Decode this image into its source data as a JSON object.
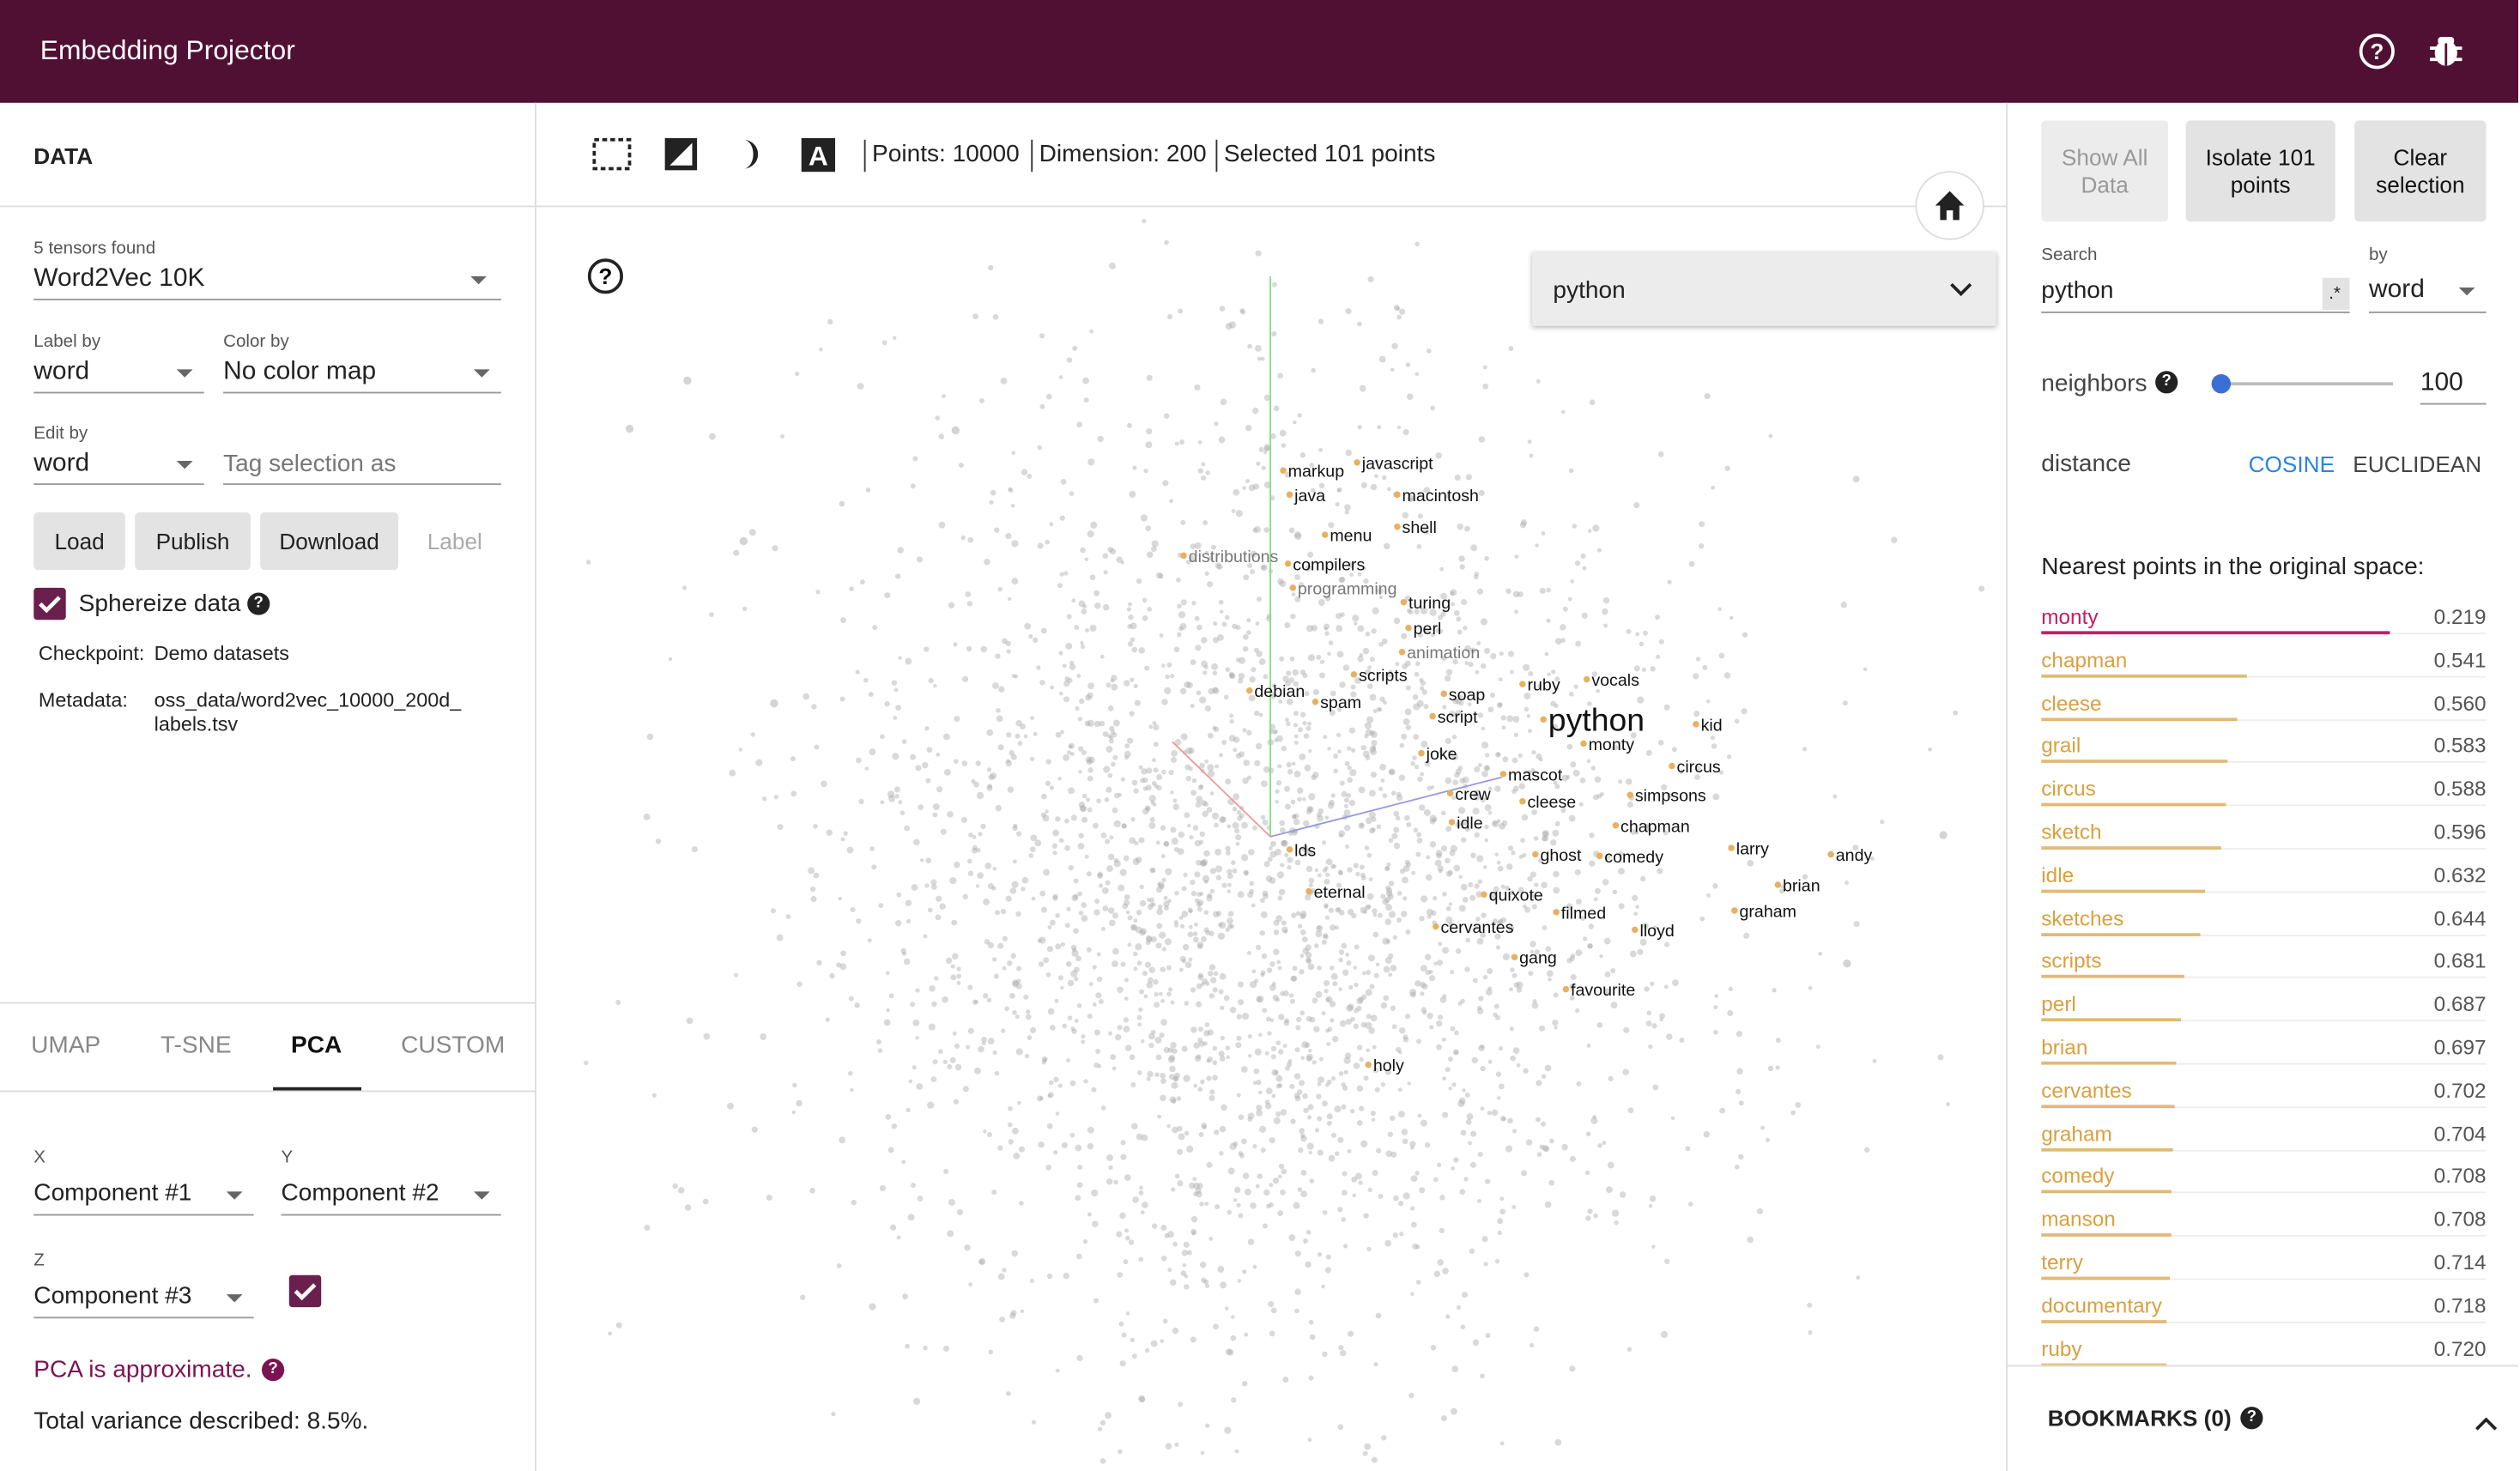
{
  "header": {
    "title": "Embedding Projector"
  },
  "left_panel": {
    "section_title": "DATA",
    "tensors_found": "5 tensors found",
    "tensor": "Word2Vec 10K",
    "label_by": {
      "label": "Label by",
      "value": "word"
    },
    "color_by": {
      "label": "Color by",
      "value": "No color map"
    },
    "edit_by": {
      "label": "Edit by",
      "value": "word"
    },
    "tag_placeholder": "Tag selection as",
    "buttons": [
      "Load",
      "Publish",
      "Download"
    ],
    "label_button": "Label",
    "sphereize": "Sphereize data",
    "checkpoint": {
      "label": "Checkpoint:",
      "value": "Demo datasets"
    },
    "metadata": {
      "label": "Metadata:",
      "value_lines": [
        "oss_data/word2vec_10000_200d_",
        "labels.tsv"
      ]
    },
    "tabs": [
      "UMAP",
      "T-SNE",
      "PCA",
      "CUSTOM"
    ],
    "active_tab": 2,
    "pca": {
      "x": {
        "label": "X",
        "value": "Component #1"
      },
      "y": {
        "label": "Y",
        "value": "Component #2"
      },
      "z": {
        "label": "Z",
        "value": "Component #3"
      },
      "approx": "PCA is approximate.",
      "variance": "Total variance described: 8.5%."
    }
  },
  "toolbar": {
    "points": "Points: 10000",
    "dimension": "Dimension: 200",
    "selected": "Selected 101 points"
  },
  "plot": {
    "dropdown": "python",
    "labels": [
      "markup",
      "javascript",
      "java",
      "macintosh",
      "menu",
      "shell",
      "distributions",
      "compilers",
      "programming",
      "turing",
      "perl",
      "animation",
      "scripts",
      "ruby",
      "vocals",
      "debian",
      "soap",
      "spam",
      "script",
      "python",
      "kid",
      "monty",
      "joke",
      "circus",
      "mascot",
      "crew",
      "simpsons",
      "cleese",
      "idle",
      "chapman",
      "larry",
      "andy",
      "lds",
      "ghost",
      "comedy",
      "brian",
      "eternal",
      "quixote",
      "graham",
      "filmed",
      "cervantes",
      "lloyd",
      "gang",
      "favourite",
      "holy"
    ]
  },
  "right_panel": {
    "buttons": [
      {
        "line1": "Show All",
        "line2": "Data"
      },
      {
        "line1": "Isolate 101",
        "line2": "points"
      },
      {
        "line1": "Clear",
        "line2": "selection"
      }
    ],
    "search": {
      "label": "Search",
      "value": "python",
      "regex": ".*"
    },
    "by": {
      "label": "by",
      "value": "word"
    },
    "neighbors": {
      "label": "neighbors",
      "value": "100"
    },
    "distance": {
      "label": "distance",
      "options": [
        "COSINE",
        "EUCLIDEAN"
      ]
    },
    "nearest_title": "Nearest points in the original space:",
    "nearest": [
      {
        "word": "monty",
        "distance": "0.219"
      },
      {
        "word": "chapman",
        "distance": "0.541"
      },
      {
        "word": "cleese",
        "distance": "0.560"
      },
      {
        "word": "grail",
        "distance": "0.583"
      },
      {
        "word": "circus",
        "distance": "0.588"
      },
      {
        "word": "sketch",
        "distance": "0.596"
      },
      {
        "word": "idle",
        "distance": "0.632"
      },
      {
        "word": "sketches",
        "distance": "0.644"
      },
      {
        "word": "scripts",
        "distance": "0.681"
      },
      {
        "word": "perl",
        "distance": "0.687"
      },
      {
        "word": "brian",
        "distance": "0.697"
      },
      {
        "word": "cervantes",
        "distance": "0.702"
      },
      {
        "word": "graham",
        "distance": "0.704"
      },
      {
        "word": "comedy",
        "distance": "0.708"
      },
      {
        "word": "manson",
        "distance": "0.708"
      },
      {
        "word": "terry",
        "distance": "0.714"
      },
      {
        "word": "documentary",
        "distance": "0.718"
      },
      {
        "word": "ruby",
        "distance": "0.720"
      }
    ],
    "bookmarks": "BOOKMARKS (0)"
  }
}
